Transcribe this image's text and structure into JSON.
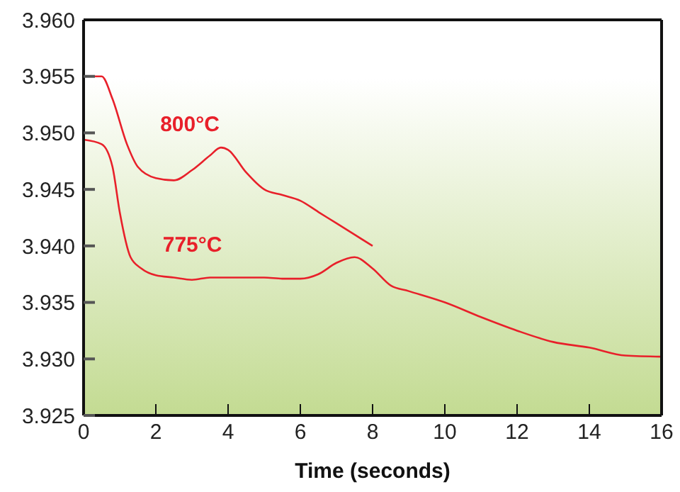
{
  "chart_data": {
    "type": "line",
    "xlabel": "Time (seconds)",
    "xlim": [
      0,
      16
    ],
    "xticks": [
      0,
      2,
      4,
      6,
      8,
      10,
      12,
      14,
      16
    ],
    "ylim": [
      3.925,
      3.96
    ],
    "yticks": [
      {
        "value": 3.925,
        "label": "3.925"
      },
      {
        "value": 3.93,
        "label": "3.930"
      },
      {
        "value": 3.935,
        "label": "3.935"
      },
      {
        "value": 3.94,
        "label": "3.940"
      },
      {
        "value": 3.945,
        "label": "3.945"
      },
      {
        "value": 3.95,
        "label": "3.950"
      },
      {
        "value": 3.955,
        "label": "3.955"
      },
      {
        "value": 3.96,
        "label": "3.960"
      }
    ],
    "grid": false,
    "legend": false,
    "marker": "none",
    "line_style": "solid",
    "series": [
      {
        "name": "800°C",
        "color": "#e8202a",
        "x": [
          0,
          0.5,
          0.8,
          1.2,
          1.5,
          2,
          2.5,
          3,
          3.5,
          3.8,
          4,
          4.5,
          5,
          5.5,
          6,
          6.5,
          7,
          7.5,
          8
        ],
        "values": [
          3.955,
          3.955,
          3.953,
          3.949,
          3.947,
          3.946,
          3.9458,
          3.9467,
          3.948,
          3.9487,
          3.9485,
          3.9465,
          3.945,
          3.9445,
          3.944,
          3.943,
          3.942,
          3.941,
          3.94
        ]
      },
      {
        "name": "775°C",
        "color": "#e8202a",
        "x": [
          0,
          0.5,
          0.8,
          1,
          1.3,
          1.6,
          2,
          2.5,
          3,
          3.5,
          4,
          4.5,
          5,
          5.5,
          6,
          6.5,
          7,
          7.5,
          8,
          8.5,
          9,
          10,
          11,
          12,
          13,
          14,
          15,
          16
        ],
        "values": [
          3.9494,
          3.949,
          3.947,
          3.943,
          3.939,
          3.938,
          3.9374,
          3.9372,
          3.937,
          3.9372,
          3.9372,
          3.9372,
          3.9372,
          3.9371,
          3.9371,
          3.9375,
          3.9385,
          3.939,
          3.938,
          3.9365,
          3.936,
          3.935,
          3.9337,
          3.9325,
          3.9315,
          3.931,
          3.9303,
          3.9302
        ]
      }
    ]
  }
}
